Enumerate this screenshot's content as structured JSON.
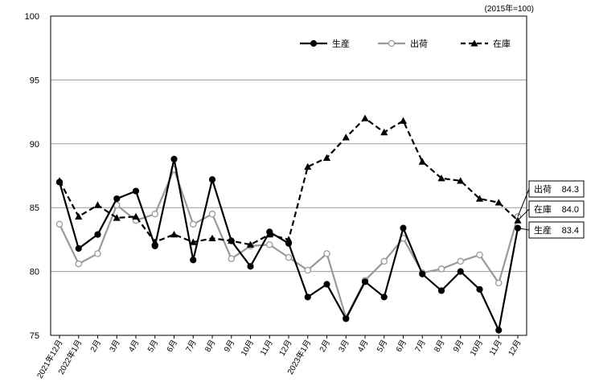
{
  "chart_data": {
    "type": "line",
    "unit_note": "(2015年=100)",
    "ylim": [
      75,
      100
    ],
    "yticks": [
      75,
      80,
      85,
      90,
      95,
      100
    ],
    "grid": true,
    "legend_position": "top-right",
    "categories": [
      "2021年12月",
      "2022年1月",
      "2月",
      "3月",
      "4月",
      "5月",
      "6月",
      "7月",
      "8月",
      "9月",
      "10月",
      "11月",
      "12月",
      "2023年1月",
      "2月",
      "3月",
      "4月",
      "5月",
      "6月",
      "7月",
      "8月",
      "9月",
      "10月",
      "11月",
      "12月"
    ],
    "series": [
      {
        "name": "生産",
        "style": "solid-black-filled-circle",
        "color": "#000000",
        "values": [
          87.0,
          81.8,
          82.9,
          85.7,
          86.3,
          82.0,
          88.8,
          80.9,
          87.2,
          82.4,
          80.4,
          83.1,
          82.2,
          78.0,
          79.0,
          76.3,
          79.2,
          78.0,
          83.4,
          79.8,
          78.5,
          80.0,
          78.6,
          75.4,
          83.4
        ]
      },
      {
        "name": "出荷",
        "style": "solid-gray-open-circle",
        "color": "#999999",
        "values": [
          83.7,
          80.6,
          81.4,
          85.2,
          84.0,
          84.5,
          88.0,
          83.7,
          84.5,
          81.0,
          82.0,
          82.1,
          81.1,
          80.1,
          81.4,
          76.4,
          79.3,
          80.8,
          82.6,
          79.9,
          80.2,
          80.8,
          81.3,
          79.1,
          84.3
        ]
      },
      {
        "name": "在庫",
        "style": "dashed-black-triangle",
        "color": "#000000",
        "values": [
          87.1,
          84.3,
          85.2,
          84.2,
          84.3,
          82.3,
          82.9,
          82.3,
          82.6,
          82.4,
          82.1,
          82.9,
          82.5,
          88.2,
          88.9,
          90.5,
          92.0,
          90.9,
          91.8,
          88.6,
          87.3,
          87.1,
          85.7,
          85.4,
          84.0
        ]
      }
    ],
    "callouts": [
      {
        "series": "出荷",
        "label": "出荷",
        "value": "84.3"
      },
      {
        "series": "在庫",
        "label": "在庫",
        "value": "84.0"
      },
      {
        "series": "生産",
        "label": "生産",
        "value": "83.4"
      }
    ]
  }
}
